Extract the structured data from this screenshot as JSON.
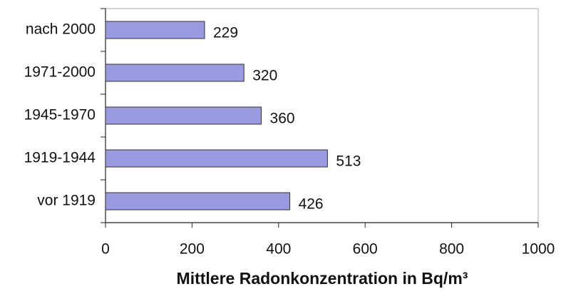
{
  "chart_data": {
    "type": "bar",
    "orientation": "horizontal",
    "categories": [
      "nach 2000",
      "1971-2000",
      "1945-1970",
      "1919-1944",
      "vor 1919"
    ],
    "values": [
      229,
      320,
      360,
      513,
      426
    ],
    "color": "#9a9ae0",
    "xlabel": "Mittlere Radonkonzentration in Bq/m³",
    "xlim": [
      0,
      1000
    ],
    "xticks": [
      0,
      200,
      400,
      600,
      800,
      1000
    ],
    "grid": false
  }
}
